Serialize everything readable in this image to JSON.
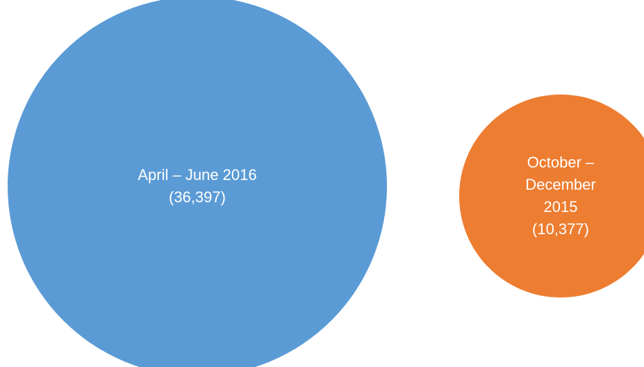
{
  "chart_data": {
    "type": "bubble",
    "categories": [
      "April – June 2016",
      "October – December 2015"
    ],
    "values": [
      36397,
      10377
    ],
    "value_labels": [
      "(36,397)",
      "(10,377)"
    ],
    "colors": [
      "#5b9bd5",
      "#ed7d31"
    ]
  }
}
